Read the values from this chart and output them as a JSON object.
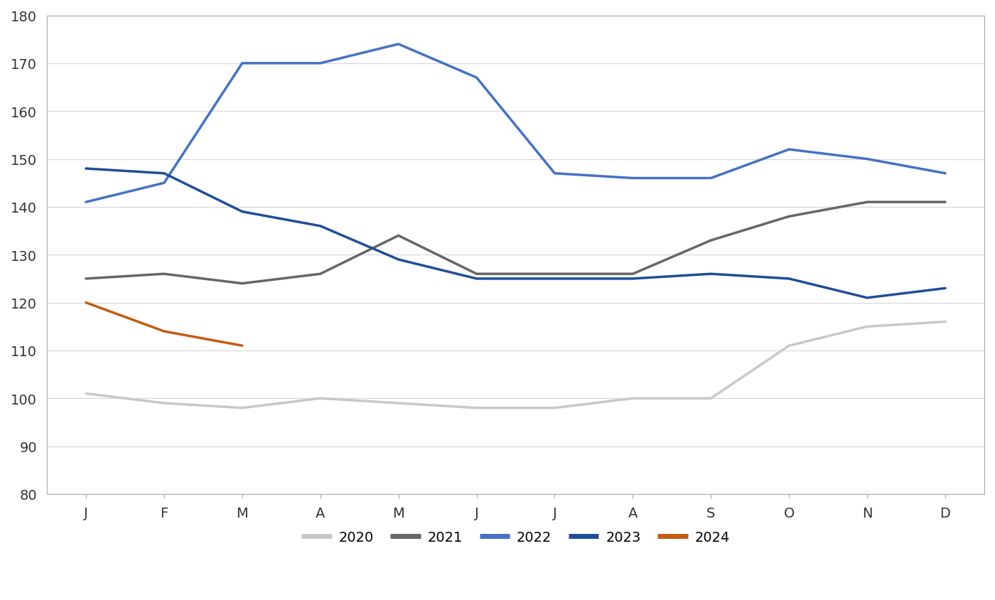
{
  "months": [
    "J",
    "F",
    "M",
    "A",
    "M",
    "J",
    "J",
    "A",
    "S",
    "O",
    "N",
    "D"
  ],
  "series": {
    "2020": [
      101,
      99,
      98,
      100,
      99,
      98,
      98,
      100,
      100,
      111,
      115,
      116
    ],
    "2021": [
      125,
      126,
      124,
      126,
      134,
      126,
      126,
      126,
      133,
      138,
      141,
      141
    ],
    "2022": [
      141,
      145,
      170,
      170,
      174,
      167,
      147,
      146,
      146,
      152,
      150,
      147
    ],
    "2023": [
      148,
      147,
      139,
      136,
      129,
      125,
      125,
      125,
      126,
      125,
      121,
      123
    ],
    "2024": [
      120,
      114,
      111,
      null,
      null,
      null,
      null,
      null,
      null,
      null,
      null,
      null
    ]
  },
  "colors": {
    "2020": "#c8c8c8",
    "2021": "#666666",
    "2022": "#4472c4",
    "2023": "#1f4e99",
    "2024": "#c55a11"
  },
  "line_widths": {
    "2020": 2.5,
    "2021": 2.5,
    "2022": 2.5,
    "2023": 2.5,
    "2024": 2.5
  },
  "ylim": [
    80,
    180
  ],
  "yticks": [
    80,
    90,
    100,
    110,
    120,
    130,
    140,
    150,
    160,
    170,
    180
  ],
  "background_color": "#ffffff",
  "grid_color": "#d8d8d8",
  "border_color": "#aaaaaa",
  "legend_order": [
    "2020",
    "2021",
    "2022",
    "2023",
    "2024"
  ],
  "tick_color": "#aaaaaa",
  "label_color": "#333333"
}
